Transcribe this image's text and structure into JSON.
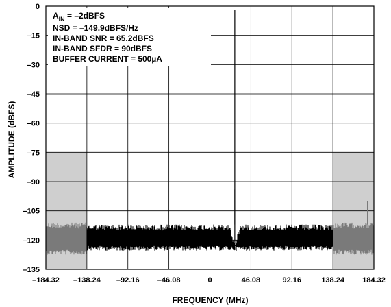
{
  "chart_data": {
    "type": "line",
    "title": "",
    "xlabel": "FREQUENCY (MHz)",
    "ylabel": "AMPLITUDE (dBFS)",
    "xlim": [
      -184.32,
      184.32
    ],
    "ylim": [
      -135,
      0
    ],
    "grid": true,
    "x_ticks": [
      -184.32,
      -138.24,
      -92.16,
      -46.08,
      0,
      46.08,
      92.16,
      138.24,
      184.32
    ],
    "y_ticks": [
      0,
      -15,
      -30,
      -45,
      -60,
      -75,
      -90,
      -105,
      -120,
      -135
    ],
    "x_tick_labels": [
      "–184.32",
      "–138.24",
      "–92.16",
      "–46.08",
      "0",
      "46.08",
      "92.16",
      "138.24",
      "184.32"
    ],
    "y_tick_labels": [
      "0",
      "–15",
      "–30",
      "–45",
      "–60",
      "–75",
      "–90",
      "–105",
      "–120",
      "–135"
    ],
    "annotation": {
      "ain_prefix": "A",
      "ain_subscript": "IN",
      "ain_value": " = –2dBFS",
      "lines": [
        "NSD = –149.9dBFS/Hz",
        "IN-BAND SNR = 65.2dBFS",
        "IN-BAND SFDR = 90dBFS",
        "BUFFER CURRENT = 500µA"
      ]
    },
    "shaded_regions": [
      {
        "x_start": -184.32,
        "x_end": -138.24,
        "y_top": -75,
        "y_bottom": -135
      },
      {
        "x_start": 138.24,
        "x_end": 184.32,
        "y_top": -75,
        "y_bottom": -135
      }
    ],
    "signal_peak": {
      "x": 28.0,
      "y": -2
    },
    "noise_floor": {
      "in_band_top": -112,
      "in_band_bottom": -123,
      "out_band_top": -111,
      "out_band_bottom": -125
    },
    "spurs": [
      {
        "x": 28.0,
        "y": -94
      },
      {
        "x": 177,
        "y": -100
      }
    ],
    "colors": {
      "in_band_trace": "#000000",
      "out_band_trace": "#7a7a7a",
      "shade": "#cfcfcf",
      "grid": "#000000"
    }
  }
}
